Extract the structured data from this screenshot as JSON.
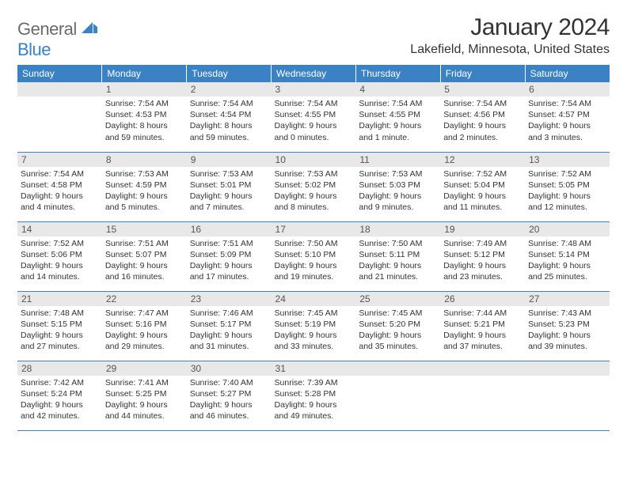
{
  "logo": {
    "text1": "General",
    "text2": "Blue",
    "text1_color": "#6b6b6b",
    "text2_color": "#3b82c4",
    "icon_color": "#3b82c4"
  },
  "title": "January 2024",
  "location": "Lakefield, Minnesota, United States",
  "colors": {
    "header_bg": "#3b82c4",
    "header_fg": "#ffffff",
    "daynum_bg": "#e8e8e8",
    "daynum_fg": "#555555",
    "text": "#333333",
    "row_border": "#3b82c4"
  },
  "weekdays": [
    "Sunday",
    "Monday",
    "Tuesday",
    "Wednesday",
    "Thursday",
    "Friday",
    "Saturday"
  ],
  "weeks": [
    [
      {
        "day": "",
        "lines": []
      },
      {
        "day": "1",
        "lines": [
          "Sunrise: 7:54 AM",
          "Sunset: 4:53 PM",
          "Daylight: 8 hours",
          "and 59 minutes."
        ]
      },
      {
        "day": "2",
        "lines": [
          "Sunrise: 7:54 AM",
          "Sunset: 4:54 PM",
          "Daylight: 8 hours",
          "and 59 minutes."
        ]
      },
      {
        "day": "3",
        "lines": [
          "Sunrise: 7:54 AM",
          "Sunset: 4:55 PM",
          "Daylight: 9 hours",
          "and 0 minutes."
        ]
      },
      {
        "day": "4",
        "lines": [
          "Sunrise: 7:54 AM",
          "Sunset: 4:55 PM",
          "Daylight: 9 hours",
          "and 1 minute."
        ]
      },
      {
        "day": "5",
        "lines": [
          "Sunrise: 7:54 AM",
          "Sunset: 4:56 PM",
          "Daylight: 9 hours",
          "and 2 minutes."
        ]
      },
      {
        "day": "6",
        "lines": [
          "Sunrise: 7:54 AM",
          "Sunset: 4:57 PM",
          "Daylight: 9 hours",
          "and 3 minutes."
        ]
      }
    ],
    [
      {
        "day": "7",
        "lines": [
          "Sunrise: 7:54 AM",
          "Sunset: 4:58 PM",
          "Daylight: 9 hours",
          "and 4 minutes."
        ]
      },
      {
        "day": "8",
        "lines": [
          "Sunrise: 7:53 AM",
          "Sunset: 4:59 PM",
          "Daylight: 9 hours",
          "and 5 minutes."
        ]
      },
      {
        "day": "9",
        "lines": [
          "Sunrise: 7:53 AM",
          "Sunset: 5:01 PM",
          "Daylight: 9 hours",
          "and 7 minutes."
        ]
      },
      {
        "day": "10",
        "lines": [
          "Sunrise: 7:53 AM",
          "Sunset: 5:02 PM",
          "Daylight: 9 hours",
          "and 8 minutes."
        ]
      },
      {
        "day": "11",
        "lines": [
          "Sunrise: 7:53 AM",
          "Sunset: 5:03 PM",
          "Daylight: 9 hours",
          "and 9 minutes."
        ]
      },
      {
        "day": "12",
        "lines": [
          "Sunrise: 7:52 AM",
          "Sunset: 5:04 PM",
          "Daylight: 9 hours",
          "and 11 minutes."
        ]
      },
      {
        "day": "13",
        "lines": [
          "Sunrise: 7:52 AM",
          "Sunset: 5:05 PM",
          "Daylight: 9 hours",
          "and 12 minutes."
        ]
      }
    ],
    [
      {
        "day": "14",
        "lines": [
          "Sunrise: 7:52 AM",
          "Sunset: 5:06 PM",
          "Daylight: 9 hours",
          "and 14 minutes."
        ]
      },
      {
        "day": "15",
        "lines": [
          "Sunrise: 7:51 AM",
          "Sunset: 5:07 PM",
          "Daylight: 9 hours",
          "and 16 minutes."
        ]
      },
      {
        "day": "16",
        "lines": [
          "Sunrise: 7:51 AM",
          "Sunset: 5:09 PM",
          "Daylight: 9 hours",
          "and 17 minutes."
        ]
      },
      {
        "day": "17",
        "lines": [
          "Sunrise: 7:50 AM",
          "Sunset: 5:10 PM",
          "Daylight: 9 hours",
          "and 19 minutes."
        ]
      },
      {
        "day": "18",
        "lines": [
          "Sunrise: 7:50 AM",
          "Sunset: 5:11 PM",
          "Daylight: 9 hours",
          "and 21 minutes."
        ]
      },
      {
        "day": "19",
        "lines": [
          "Sunrise: 7:49 AM",
          "Sunset: 5:12 PM",
          "Daylight: 9 hours",
          "and 23 minutes."
        ]
      },
      {
        "day": "20",
        "lines": [
          "Sunrise: 7:48 AM",
          "Sunset: 5:14 PM",
          "Daylight: 9 hours",
          "and 25 minutes."
        ]
      }
    ],
    [
      {
        "day": "21",
        "lines": [
          "Sunrise: 7:48 AM",
          "Sunset: 5:15 PM",
          "Daylight: 9 hours",
          "and 27 minutes."
        ]
      },
      {
        "day": "22",
        "lines": [
          "Sunrise: 7:47 AM",
          "Sunset: 5:16 PM",
          "Daylight: 9 hours",
          "and 29 minutes."
        ]
      },
      {
        "day": "23",
        "lines": [
          "Sunrise: 7:46 AM",
          "Sunset: 5:17 PM",
          "Daylight: 9 hours",
          "and 31 minutes."
        ]
      },
      {
        "day": "24",
        "lines": [
          "Sunrise: 7:45 AM",
          "Sunset: 5:19 PM",
          "Daylight: 9 hours",
          "and 33 minutes."
        ]
      },
      {
        "day": "25",
        "lines": [
          "Sunrise: 7:45 AM",
          "Sunset: 5:20 PM",
          "Daylight: 9 hours",
          "and 35 minutes."
        ]
      },
      {
        "day": "26",
        "lines": [
          "Sunrise: 7:44 AM",
          "Sunset: 5:21 PM",
          "Daylight: 9 hours",
          "and 37 minutes."
        ]
      },
      {
        "day": "27",
        "lines": [
          "Sunrise: 7:43 AM",
          "Sunset: 5:23 PM",
          "Daylight: 9 hours",
          "and 39 minutes."
        ]
      }
    ],
    [
      {
        "day": "28",
        "lines": [
          "Sunrise: 7:42 AM",
          "Sunset: 5:24 PM",
          "Daylight: 9 hours",
          "and 42 minutes."
        ]
      },
      {
        "day": "29",
        "lines": [
          "Sunrise: 7:41 AM",
          "Sunset: 5:25 PM",
          "Daylight: 9 hours",
          "and 44 minutes."
        ]
      },
      {
        "day": "30",
        "lines": [
          "Sunrise: 7:40 AM",
          "Sunset: 5:27 PM",
          "Daylight: 9 hours",
          "and 46 minutes."
        ]
      },
      {
        "day": "31",
        "lines": [
          "Sunrise: 7:39 AM",
          "Sunset: 5:28 PM",
          "Daylight: 9 hours",
          "and 49 minutes."
        ]
      },
      {
        "day": "",
        "lines": []
      },
      {
        "day": "",
        "lines": []
      },
      {
        "day": "",
        "lines": []
      }
    ]
  ]
}
